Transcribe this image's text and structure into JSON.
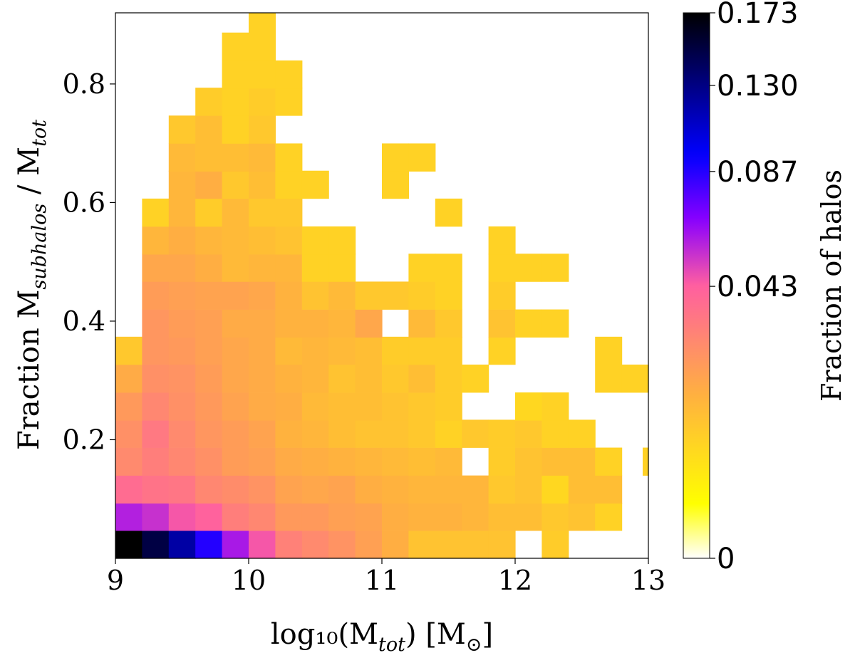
{
  "chart_data": {
    "type": "heatmap",
    "xlabel": "log₁₀(M",
    "xlabel_sub": "tot",
    "xlabel_tail": ") [M",
    "xlabel_unit": "⊙",
    "xlabel_end": "]",
    "ylabel": "Fraction M",
    "ylabel_sub1": "subhalos",
    "ylabel_mid": " / M",
    "ylabel_sub2": "tot",
    "colorbar_label": "Fraction of halos",
    "xlim": [
      9,
      13
    ],
    "ylim": [
      0,
      0.92
    ],
    "x_bin_width": 0.2,
    "y_bin_width": 0.0467,
    "x_ticks": [
      "9",
      "10",
      "11",
      "12",
      "13"
    ],
    "y_ticks": [
      "0.2",
      "0.4",
      "0.6",
      "0.8"
    ],
    "y_tick_values": [
      0.2,
      0.4,
      0.6,
      0.8
    ],
    "colorbar_ticks": [
      "0",
      "0.043",
      "0.087",
      "0.130",
      "0.173"
    ],
    "colorbar_tick_values": [
      0,
      0.043,
      0.087,
      0.13,
      0.173
    ],
    "colorbar_max": 0.173,
    "colormap": [
      "#ffffff",
      "#ffff00",
      "#ffb040",
      "#ff5fa0",
      "#8a00ff",
      "#0000ff",
      "#000000"
    ],
    "cells": [
      {
        "x": 9.0,
        "y": 0.0,
        "v": 0.173
      },
      {
        "x": 9.2,
        "y": 0.0,
        "v": 0.15
      },
      {
        "x": 9.4,
        "y": 0.0,
        "v": 0.12
      },
      {
        "x": 9.6,
        "y": 0.0,
        "v": 0.087
      },
      {
        "x": 9.8,
        "y": 0.0,
        "v": 0.06
      },
      {
        "x": 10.0,
        "y": 0.0,
        "v": 0.045
      },
      {
        "x": 10.2,
        "y": 0.0,
        "v": 0.03
      },
      {
        "x": 10.4,
        "y": 0.0,
        "v": 0.027
      },
      {
        "x": 10.6,
        "y": 0.0,
        "v": 0.024
      },
      {
        "x": 10.8,
        "y": 0.0,
        "v": 0.02
      },
      {
        "x": 11.0,
        "y": 0.0,
        "v": 0.016
      },
      {
        "x": 11.2,
        "y": 0.0,
        "v": 0.011
      },
      {
        "x": 11.4,
        "y": 0.0,
        "v": 0.011
      },
      {
        "x": 11.6,
        "y": 0.0,
        "v": 0.011
      },
      {
        "x": 11.8,
        "y": 0.0,
        "v": 0.011
      },
      {
        "x": 12.2,
        "y": 0.0,
        "v": 0.009
      },
      {
        "x": 9.0,
        "y": 0.047,
        "v": 0.058
      },
      {
        "x": 9.2,
        "y": 0.047,
        "v": 0.054
      },
      {
        "x": 9.4,
        "y": 0.047,
        "v": 0.045
      },
      {
        "x": 9.6,
        "y": 0.047,
        "v": 0.042
      },
      {
        "x": 9.8,
        "y": 0.047,
        "v": 0.031
      },
      {
        "x": 10.0,
        "y": 0.047,
        "v": 0.028
      },
      {
        "x": 10.2,
        "y": 0.047,
        "v": 0.022
      },
      {
        "x": 10.4,
        "y": 0.047,
        "v": 0.022
      },
      {
        "x": 10.6,
        "y": 0.047,
        "v": 0.02
      },
      {
        "x": 10.8,
        "y": 0.047,
        "v": 0.019
      },
      {
        "x": 11.0,
        "y": 0.047,
        "v": 0.016
      },
      {
        "x": 11.2,
        "y": 0.047,
        "v": 0.015
      },
      {
        "x": 11.4,
        "y": 0.047,
        "v": 0.015
      },
      {
        "x": 11.6,
        "y": 0.047,
        "v": 0.014
      },
      {
        "x": 11.8,
        "y": 0.047,
        "v": 0.012
      },
      {
        "x": 12.0,
        "y": 0.047,
        "v": 0.012
      },
      {
        "x": 12.2,
        "y": 0.047,
        "v": 0.01
      },
      {
        "x": 12.4,
        "y": 0.047,
        "v": 0.011
      },
      {
        "x": 12.6,
        "y": 0.047,
        "v": 0.008
      },
      {
        "x": 9.0,
        "y": 0.093,
        "v": 0.038
      },
      {
        "x": 9.2,
        "y": 0.093,
        "v": 0.035
      },
      {
        "x": 9.4,
        "y": 0.093,
        "v": 0.034
      },
      {
        "x": 9.6,
        "y": 0.093,
        "v": 0.028
      },
      {
        "x": 9.8,
        "y": 0.093,
        "v": 0.026
      },
      {
        "x": 10.0,
        "y": 0.093,
        "v": 0.024
      },
      {
        "x": 10.2,
        "y": 0.093,
        "v": 0.019
      },
      {
        "x": 10.4,
        "y": 0.093,
        "v": 0.018
      },
      {
        "x": 10.6,
        "y": 0.093,
        "v": 0.019
      },
      {
        "x": 10.8,
        "y": 0.093,
        "v": 0.016
      },
      {
        "x": 11.0,
        "y": 0.093,
        "v": 0.015
      },
      {
        "x": 11.2,
        "y": 0.093,
        "v": 0.014
      },
      {
        "x": 11.4,
        "y": 0.093,
        "v": 0.014
      },
      {
        "x": 11.6,
        "y": 0.093,
        "v": 0.014
      },
      {
        "x": 11.8,
        "y": 0.093,
        "v": 0.01
      },
      {
        "x": 12.0,
        "y": 0.093,
        "v": 0.011
      },
      {
        "x": 12.2,
        "y": 0.093,
        "v": 0.007
      },
      {
        "x": 12.4,
        "y": 0.093,
        "v": 0.012
      },
      {
        "x": 12.6,
        "y": 0.093,
        "v": 0.012
      },
      {
        "x": 9.0,
        "y": 0.14,
        "v": 0.027
      },
      {
        "x": 9.2,
        "y": 0.14,
        "v": 0.031
      },
      {
        "x": 9.4,
        "y": 0.14,
        "v": 0.028
      },
      {
        "x": 9.6,
        "y": 0.14,
        "v": 0.025
      },
      {
        "x": 9.8,
        "y": 0.14,
        "v": 0.021
      },
      {
        "x": 10.0,
        "y": 0.14,
        "v": 0.02
      },
      {
        "x": 10.2,
        "y": 0.14,
        "v": 0.017
      },
      {
        "x": 10.4,
        "y": 0.14,
        "v": 0.016
      },
      {
        "x": 10.6,
        "y": 0.14,
        "v": 0.015
      },
      {
        "x": 10.8,
        "y": 0.14,
        "v": 0.014
      },
      {
        "x": 11.0,
        "y": 0.14,
        "v": 0.013
      },
      {
        "x": 11.2,
        "y": 0.14,
        "v": 0.012
      },
      {
        "x": 11.4,
        "y": 0.14,
        "v": 0.013
      },
      {
        "x": 11.8,
        "y": 0.14,
        "v": 0.009
      },
      {
        "x": 12.0,
        "y": 0.14,
        "v": 0.011
      },
      {
        "x": 12.2,
        "y": 0.14,
        "v": 0.012
      },
      {
        "x": 12.4,
        "y": 0.14,
        "v": 0.012
      },
      {
        "x": 12.6,
        "y": 0.14,
        "v": 0.008
      },
      {
        "x": 13.0,
        "y": 0.14,
        "v": 0.008
      },
      {
        "x": 9.0,
        "y": 0.187,
        "v": 0.025
      },
      {
        "x": 9.2,
        "y": 0.187,
        "v": 0.033
      },
      {
        "x": 9.4,
        "y": 0.187,
        "v": 0.027
      },
      {
        "x": 9.6,
        "y": 0.187,
        "v": 0.023
      },
      {
        "x": 9.8,
        "y": 0.187,
        "v": 0.021
      },
      {
        "x": 10.0,
        "y": 0.187,
        "v": 0.019
      },
      {
        "x": 10.2,
        "y": 0.187,
        "v": 0.015
      },
      {
        "x": 10.4,
        "y": 0.187,
        "v": 0.014
      },
      {
        "x": 10.6,
        "y": 0.187,
        "v": 0.012
      },
      {
        "x": 10.8,
        "y": 0.187,
        "v": 0.011
      },
      {
        "x": 11.0,
        "y": 0.187,
        "v": 0.011
      },
      {
        "x": 11.2,
        "y": 0.187,
        "v": 0.01
      },
      {
        "x": 11.4,
        "y": 0.187,
        "v": 0.008
      },
      {
        "x": 11.6,
        "y": 0.187,
        "v": 0.01
      },
      {
        "x": 11.8,
        "y": 0.187,
        "v": 0.009
      },
      {
        "x": 12.0,
        "y": 0.187,
        "v": 0.01
      },
      {
        "x": 12.2,
        "y": 0.187,
        "v": 0.008
      },
      {
        "x": 12.4,
        "y": 0.187,
        "v": 0.008
      },
      {
        "x": 9.0,
        "y": 0.233,
        "v": 0.022
      },
      {
        "x": 9.2,
        "y": 0.233,
        "v": 0.028
      },
      {
        "x": 9.4,
        "y": 0.233,
        "v": 0.025
      },
      {
        "x": 9.6,
        "y": 0.233,
        "v": 0.022
      },
      {
        "x": 9.8,
        "y": 0.233,
        "v": 0.019
      },
      {
        "x": 10.0,
        "y": 0.233,
        "v": 0.017
      },
      {
        "x": 10.2,
        "y": 0.233,
        "v": 0.016
      },
      {
        "x": 10.4,
        "y": 0.233,
        "v": 0.013
      },
      {
        "x": 10.6,
        "y": 0.233,
        "v": 0.012
      },
      {
        "x": 10.8,
        "y": 0.233,
        "v": 0.012
      },
      {
        "x": 11.0,
        "y": 0.233,
        "v": 0.011
      },
      {
        "x": 11.2,
        "y": 0.233,
        "v": 0.01
      },
      {
        "x": 11.4,
        "y": 0.233,
        "v": 0.009
      },
      {
        "x": 12.0,
        "y": 0.233,
        "v": 0.007
      },
      {
        "x": 12.2,
        "y": 0.233,
        "v": 0.008
      },
      {
        "x": 9.0,
        "y": 0.28,
        "v": 0.017
      },
      {
        "x": 9.2,
        "y": 0.28,
        "v": 0.025
      },
      {
        "x": 9.4,
        "y": 0.28,
        "v": 0.024
      },
      {
        "x": 9.6,
        "y": 0.28,
        "v": 0.021
      },
      {
        "x": 9.8,
        "y": 0.28,
        "v": 0.018
      },
      {
        "x": 10.0,
        "y": 0.28,
        "v": 0.017
      },
      {
        "x": 10.2,
        "y": 0.28,
        "v": 0.015
      },
      {
        "x": 10.4,
        "y": 0.28,
        "v": 0.014
      },
      {
        "x": 10.6,
        "y": 0.28,
        "v": 0.011
      },
      {
        "x": 10.8,
        "y": 0.28,
        "v": 0.012
      },
      {
        "x": 11.0,
        "y": 0.28,
        "v": 0.01
      },
      {
        "x": 11.2,
        "y": 0.28,
        "v": 0.012
      },
      {
        "x": 11.4,
        "y": 0.28,
        "v": 0.009
      },
      {
        "x": 11.6,
        "y": 0.28,
        "v": 0.008
      },
      {
        "x": 12.6,
        "y": 0.28,
        "v": 0.008
      },
      {
        "x": 12.8,
        "y": 0.28,
        "v": 0.008
      },
      {
        "x": 9.0,
        "y": 0.327,
        "v": 0.01
      },
      {
        "x": 9.2,
        "y": 0.327,
        "v": 0.023
      },
      {
        "x": 9.4,
        "y": 0.327,
        "v": 0.022
      },
      {
        "x": 9.6,
        "y": 0.327,
        "v": 0.02
      },
      {
        "x": 9.8,
        "y": 0.327,
        "v": 0.018
      },
      {
        "x": 10.0,
        "y": 0.327,
        "v": 0.017
      },
      {
        "x": 10.2,
        "y": 0.327,
        "v": 0.013
      },
      {
        "x": 10.4,
        "y": 0.327,
        "v": 0.014
      },
      {
        "x": 10.6,
        "y": 0.327,
        "v": 0.013
      },
      {
        "x": 10.8,
        "y": 0.327,
        "v": 0.012
      },
      {
        "x": 11.0,
        "y": 0.327,
        "v": 0.009
      },
      {
        "x": 11.2,
        "y": 0.327,
        "v": 0.009
      },
      {
        "x": 11.4,
        "y": 0.327,
        "v": 0.009
      },
      {
        "x": 11.8,
        "y": 0.327,
        "v": 0.008
      },
      {
        "x": 12.6,
        "y": 0.327,
        "v": 0.008
      },
      {
        "x": 9.2,
        "y": 0.373,
        "v": 0.023
      },
      {
        "x": 9.4,
        "y": 0.373,
        "v": 0.021
      },
      {
        "x": 9.6,
        "y": 0.373,
        "v": 0.02
      },
      {
        "x": 9.8,
        "y": 0.373,
        "v": 0.017
      },
      {
        "x": 10.0,
        "y": 0.373,
        "v": 0.017
      },
      {
        "x": 10.2,
        "y": 0.373,
        "v": 0.015
      },
      {
        "x": 10.4,
        "y": 0.373,
        "v": 0.015
      },
      {
        "x": 10.6,
        "y": 0.373,
        "v": 0.014
      },
      {
        "x": 10.8,
        "y": 0.373,
        "v": 0.018
      },
      {
        "x": 11.2,
        "y": 0.373,
        "v": 0.013
      },
      {
        "x": 11.4,
        "y": 0.373,
        "v": 0.01
      },
      {
        "x": 11.8,
        "y": 0.373,
        "v": 0.011
      },
      {
        "x": 12.0,
        "y": 0.373,
        "v": 0.008
      },
      {
        "x": 12.2,
        "y": 0.373,
        "v": 0.008
      },
      {
        "x": 9.2,
        "y": 0.42,
        "v": 0.021
      },
      {
        "x": 9.4,
        "y": 0.42,
        "v": 0.02
      },
      {
        "x": 9.6,
        "y": 0.42,
        "v": 0.019
      },
      {
        "x": 9.8,
        "y": 0.42,
        "v": 0.019
      },
      {
        "x": 10.0,
        "y": 0.42,
        "v": 0.018
      },
      {
        "x": 10.2,
        "y": 0.42,
        "v": 0.015
      },
      {
        "x": 10.4,
        "y": 0.42,
        "v": 0.011
      },
      {
        "x": 10.6,
        "y": 0.42,
        "v": 0.013
      },
      {
        "x": 10.8,
        "y": 0.42,
        "v": 0.01
      },
      {
        "x": 11.0,
        "y": 0.42,
        "v": 0.01
      },
      {
        "x": 11.2,
        "y": 0.42,
        "v": 0.009
      },
      {
        "x": 11.4,
        "y": 0.42,
        "v": 0.008
      },
      {
        "x": 11.8,
        "y": 0.42,
        "v": 0.009
      },
      {
        "x": 9.2,
        "y": 0.467,
        "v": 0.018
      },
      {
        "x": 9.4,
        "y": 0.467,
        "v": 0.018
      },
      {
        "x": 9.6,
        "y": 0.467,
        "v": 0.016
      },
      {
        "x": 9.8,
        "y": 0.467,
        "v": 0.013
      },
      {
        "x": 10.0,
        "y": 0.467,
        "v": 0.014
      },
      {
        "x": 10.2,
        "y": 0.467,
        "v": 0.014
      },
      {
        "x": 10.4,
        "y": 0.467,
        "v": 0.008
      },
      {
        "x": 10.6,
        "y": 0.467,
        "v": 0.008
      },
      {
        "x": 11.2,
        "y": 0.467,
        "v": 0.008
      },
      {
        "x": 11.4,
        "y": 0.467,
        "v": 0.008
      },
      {
        "x": 11.8,
        "y": 0.467,
        "v": 0.008
      },
      {
        "x": 12.0,
        "y": 0.467,
        "v": 0.008
      },
      {
        "x": 12.2,
        "y": 0.467,
        "v": 0.008
      },
      {
        "x": 9.2,
        "y": 0.513,
        "v": 0.014
      },
      {
        "x": 9.4,
        "y": 0.513,
        "v": 0.016
      },
      {
        "x": 9.6,
        "y": 0.513,
        "v": 0.014
      },
      {
        "x": 9.8,
        "y": 0.513,
        "v": 0.013
      },
      {
        "x": 10.0,
        "y": 0.513,
        "v": 0.012
      },
      {
        "x": 10.2,
        "y": 0.513,
        "v": 0.011
      },
      {
        "x": 10.4,
        "y": 0.513,
        "v": 0.008
      },
      {
        "x": 10.6,
        "y": 0.513,
        "v": 0.008
      },
      {
        "x": 11.8,
        "y": 0.513,
        "v": 0.008
      },
      {
        "x": 9.2,
        "y": 0.56,
        "v": 0.008
      },
      {
        "x": 9.4,
        "y": 0.56,
        "v": 0.014
      },
      {
        "x": 9.6,
        "y": 0.56,
        "v": 0.009
      },
      {
        "x": 9.8,
        "y": 0.56,
        "v": 0.013
      },
      {
        "x": 10.0,
        "y": 0.56,
        "v": 0.01
      },
      {
        "x": 10.2,
        "y": 0.56,
        "v": 0.01
      },
      {
        "x": 11.4,
        "y": 0.56,
        "v": 0.008
      },
      {
        "x": 9.4,
        "y": 0.607,
        "v": 0.014
      },
      {
        "x": 9.6,
        "y": 0.607,
        "v": 0.016
      },
      {
        "x": 9.8,
        "y": 0.607,
        "v": 0.01
      },
      {
        "x": 10.0,
        "y": 0.607,
        "v": 0.012
      },
      {
        "x": 10.2,
        "y": 0.607,
        "v": 0.008
      },
      {
        "x": 10.4,
        "y": 0.607,
        "v": 0.008
      },
      {
        "x": 11.0,
        "y": 0.607,
        "v": 0.008
      },
      {
        "x": 9.4,
        "y": 0.653,
        "v": 0.013
      },
      {
        "x": 9.6,
        "y": 0.653,
        "v": 0.012
      },
      {
        "x": 9.8,
        "y": 0.653,
        "v": 0.012
      },
      {
        "x": 10.0,
        "y": 0.653,
        "v": 0.013
      },
      {
        "x": 10.2,
        "y": 0.653,
        "v": 0.008
      },
      {
        "x": 11.0,
        "y": 0.653,
        "v": 0.008
      },
      {
        "x": 11.2,
        "y": 0.653,
        "v": 0.008
      },
      {
        "x": 9.4,
        "y": 0.7,
        "v": 0.01
      },
      {
        "x": 9.6,
        "y": 0.7,
        "v": 0.012
      },
      {
        "x": 9.8,
        "y": 0.7,
        "v": 0.008
      },
      {
        "x": 10.0,
        "y": 0.7,
        "v": 0.01
      },
      {
        "x": 9.6,
        "y": 0.747,
        "v": 0.009
      },
      {
        "x": 9.8,
        "y": 0.747,
        "v": 0.008
      },
      {
        "x": 10.0,
        "y": 0.747,
        "v": 0.009
      },
      {
        "x": 10.2,
        "y": 0.747,
        "v": 0.008
      },
      {
        "x": 9.8,
        "y": 0.793,
        "v": 0.008
      },
      {
        "x": 10.0,
        "y": 0.793,
        "v": 0.008
      },
      {
        "x": 10.2,
        "y": 0.793,
        "v": 0.008
      },
      {
        "x": 9.8,
        "y": 0.84,
        "v": 0.008
      },
      {
        "x": 10.0,
        "y": 0.84,
        "v": 0.008
      },
      {
        "x": 10.0,
        "y": 0.887,
        "v": 0.008
      }
    ]
  }
}
